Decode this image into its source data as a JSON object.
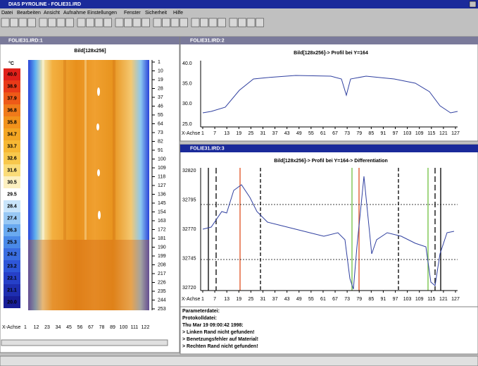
{
  "app": {
    "title": "DIAS PYROLINE - FOLIE31.IRD",
    "menu": [
      "Datei",
      "Bearbeiten",
      "Ansicht",
      "Aufnahme",
      "Einstellungen",
      "Fenster",
      "Sicherheit",
      "Hilfe"
    ]
  },
  "image_window": {
    "title": "FOLIE31.IRD:1",
    "heading": "Bild[128x256]",
    "scale_unit": "°C",
    "scale_labels": [
      "40.0",
      "38.9",
      "37.9",
      "36.8",
      "35.8",
      "34.7",
      "33.7",
      "32.6",
      "31.6",
      "30.5",
      "29.5",
      "28.4",
      "27.4",
      "26.3",
      "25.3",
      "24.2",
      "23.2",
      "22.1",
      "21.1",
      "20.0"
    ],
    "row_labels": [
      1,
      10,
      19,
      28,
      37,
      46,
      55,
      64,
      73,
      82,
      91,
      100,
      109,
      118,
      127,
      136,
      145,
      154,
      163,
      172,
      181,
      190,
      199,
      208,
      217,
      226,
      235,
      244,
      253
    ],
    "x_axis_label": "X-Achse",
    "x_labels": [
      1,
      12,
      23,
      34,
      45,
      56,
      67,
      78,
      89,
      100,
      111,
      122
    ]
  },
  "profile_window": {
    "title": "FOLIE31.IRD:2",
    "heading": "Bild[128x256]-> Profil bei Y=164",
    "y_labels": [
      "40.0",
      "35.0",
      "30.0",
      "25.0"
    ],
    "x_axis_label": "X-Achse",
    "x_labels": [
      1,
      7,
      13,
      19,
      25,
      31,
      37,
      43,
      49,
      55,
      61,
      67,
      73,
      79,
      85,
      91,
      97,
      103,
      109,
      115,
      121,
      127
    ]
  },
  "diff_window": {
    "title": "FOLIE31.IRD:3",
    "heading": "Bild[128x256]-> Profil bei Y=164-> Differentiation",
    "y_labels": [
      32820,
      32795,
      32770,
      32745,
      32720
    ],
    "x_axis_label": "X-Achse",
    "x_labels": [
      1,
      7,
      13,
      19,
      25,
      31,
      37,
      43,
      49,
      55,
      61,
      67,
      73,
      79,
      85,
      91,
      97,
      103,
      109,
      115,
      121,
      127
    ]
  },
  "log": [
    "Parameterdatei:",
    "Protokolldatei:",
    "Thu Mar 19 09:00:42 1998:",
    "> Linken Rand nicht gefunden!",
    "> Benetzungsfehler auf Material!",
    "> Rechten Rand nicht gefunden!"
  ]
}
